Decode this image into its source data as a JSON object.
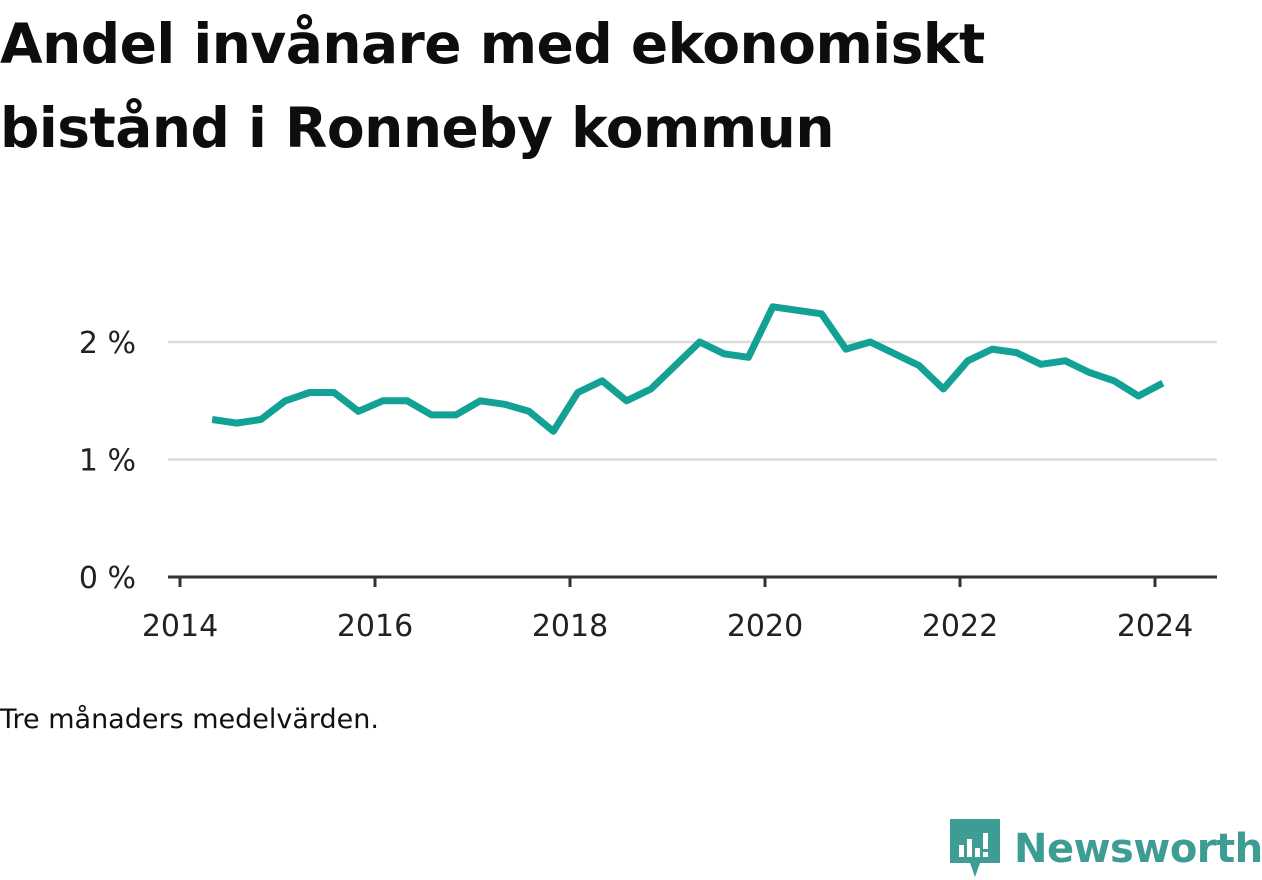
{
  "title": "Andel invånare med ekonomiskt bistånd i Ronneby kommun",
  "note": "Tre månaders medelvärden.",
  "brand": {
    "name": "Newsworthy",
    "icon": "bar-chart-badge-icon",
    "color": "#3d9c93"
  },
  "chart_data": {
    "type": "line",
    "title": "Andel invånare med ekonomiskt bistånd i Ronneby kommun",
    "xlabel": "",
    "ylabel": "",
    "x_unit": "year",
    "xlim": [
      2014,
      2024.6
    ],
    "ylim": [
      0,
      2.4
    ],
    "grid": true,
    "line_color": "#14a195",
    "x_ticks": [
      {
        "value": 2014,
        "label": "2014"
      },
      {
        "value": 2016,
        "label": "2016"
      },
      {
        "value": 2018,
        "label": "2018"
      },
      {
        "value": 2020,
        "label": "2020"
      },
      {
        "value": 2022,
        "label": "2022"
      },
      {
        "value": 2024,
        "label": "2024"
      }
    ],
    "y_ticks": [
      {
        "value": 0,
        "label": "0 %"
      },
      {
        "value": 1,
        "label": "1 %"
      },
      {
        "value": 2,
        "label": "2 %"
      }
    ],
    "series": [
      {
        "x": [
          2014.33,
          2014.58,
          2014.83,
          2015.08,
          2015.33,
          2015.58,
          2015.83,
          2016.08,
          2016.33,
          2016.58,
          2016.83,
          2017.08,
          2017.33,
          2017.58,
          2017.83,
          2018.08,
          2018.33,
          2018.58,
          2018.83,
          2019.08,
          2019.33,
          2019.58,
          2019.83,
          2020.08,
          2020.33,
          2020.58,
          2020.83,
          2021.08,
          2021.33,
          2021.58,
          2021.83,
          2022.08,
          2022.33,
          2022.58,
          2022.83,
          2023.08,
          2023.33,
          2023.58,
          2023.83,
          2024.08
        ],
        "values": [
          1.34,
          1.31,
          1.34,
          1.5,
          1.57,
          1.57,
          1.41,
          1.5,
          1.5,
          1.38,
          1.38,
          1.5,
          1.47,
          1.41,
          1.24,
          1.57,
          1.67,
          1.5,
          1.6,
          1.8,
          2.0,
          1.9,
          1.87,
          2.3,
          2.27,
          2.24,
          1.94,
          2.0,
          1.9,
          1.8,
          1.6,
          1.84,
          1.94,
          1.91,
          1.81,
          1.84,
          1.74,
          1.67,
          1.54,
          1.65
        ]
      }
    ]
  }
}
